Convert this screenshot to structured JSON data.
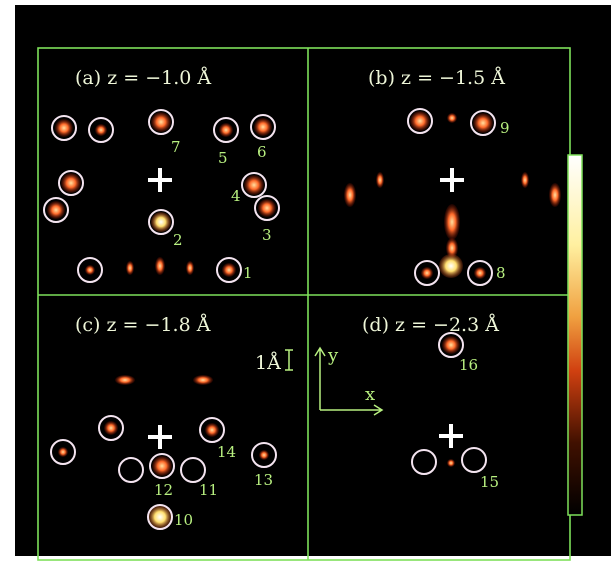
{
  "panels": [
    {
      "label": "(a) z = −1.0 Å",
      "peaks": [
        "7",
        "5",
        "6",
        "4",
        "3",
        "2",
        "1"
      ]
    },
    {
      "label": "(b) z = −1.5 Å",
      "peaks": [
        "9",
        "8"
      ]
    },
    {
      "label": "(c) z = −1.8 Å",
      "peaks": [
        "14",
        "13",
        "12",
        "11",
        "10"
      ]
    },
    {
      "label": "(d) z = −2.3 Å",
      "peaks": [
        "16",
        "15"
      ]
    }
  ],
  "scale": "1Å",
  "axes": {
    "y": "y",
    "x": "x"
  }
}
